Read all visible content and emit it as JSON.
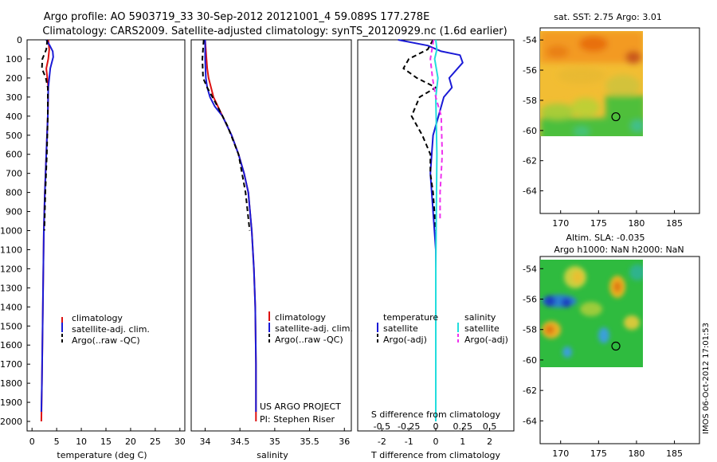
{
  "figure": {
    "title_line1": "Argo profile: AO 5903719_33 30-Sep-2012 20121001_4 59.089S 177.278E",
    "title_line2": "Climatology: CARS2009. Satellite-adjusted climatology: synTS_20120929.nc (1.6d earlier)",
    "side_label": "IMOS 06-Oct-2012 17:01:53"
  },
  "colors": {
    "climatology": "#dd1111",
    "satellite": "#1a1ad6",
    "argo": "#000000",
    "salinity_satellite": "#22dddd",
    "salinity_argo": "#ee33ee"
  },
  "chart_data": [
    {
      "id": "temperature",
      "type": "line",
      "title": "",
      "xlabel": "temperature (deg C)",
      "ylabel": "",
      "xlim": [
        -1,
        31
      ],
      "ylim": [
        2050,
        0
      ],
      "xticks": [
        0,
        5,
        10,
        15,
        20,
        25,
        30
      ],
      "xtick_labels": [
        "0",
        "5",
        "10",
        "15",
        "20",
        "25",
        "30"
      ],
      "yticks": [
        0,
        100,
        200,
        300,
        400,
        500,
        600,
        700,
        800,
        900,
        1000,
        1100,
        1200,
        1300,
        1400,
        1500,
        1600,
        1700,
        1800,
        1900,
        2000
      ],
      "ytick_labels": [
        "0",
        "100",
        "200",
        "300",
        "400",
        "500",
        "600",
        "700",
        "800",
        "900",
        "1000",
        "1100",
        "1200",
        "1300",
        "1400",
        "1500",
        "1600",
        "1700",
        "1800",
        "1900",
        "2000"
      ],
      "legend": [
        "climatology",
        "satellite-adj. clim.",
        "Argo(..raw -QC)"
      ],
      "annotations": [],
      "series": [
        {
          "name": "climatology",
          "style": "solid",
          "x": [
            3.3,
            3.5,
            3.3,
            2.9,
            3.1,
            3.3,
            3.2,
            2.9,
            2.6,
            2.4,
            2.2,
            2.0,
            1.9
          ],
          "y": [
            0,
            50,
            100,
            150,
            200,
            250,
            400,
            600,
            800,
            1000,
            1400,
            1800,
            2000
          ]
        },
        {
          "name": "satellite-adj. clim.",
          "style": "solid",
          "x": [
            2.9,
            3.6,
            4.2,
            4.3,
            3.7,
            3.3,
            3.2,
            2.9,
            2.6,
            2.4,
            2.2,
            2.0,
            1.9
          ],
          "y": [
            0,
            30,
            60,
            90,
            150,
            250,
            400,
            600,
            800,
            1000,
            1400,
            1800,
            1950
          ]
        },
        {
          "name": "Argo(..raw -QC)",
          "style": "dash",
          "x": [
            3.1,
            2.9,
            2.1,
            2.0,
            2.8,
            3.2,
            3.2,
            3.0,
            2.7,
            2.5
          ],
          "y": [
            0,
            50,
            100,
            150,
            200,
            250,
            400,
            600,
            800,
            1000
          ]
        }
      ]
    },
    {
      "id": "salinity",
      "type": "line",
      "title": "",
      "xlabel": "salinity",
      "ylabel": "",
      "xlim": [
        33.8,
        36.1
      ],
      "ylim": [
        2050,
        0
      ],
      "xticks": [
        34,
        34.5,
        35,
        35.5,
        36
      ],
      "xtick_labels": [
        "34",
        "34.5",
        "35",
        "35.5",
        "36"
      ],
      "yticks": [],
      "ytick_labels": [],
      "legend": [
        "climatology",
        "satellite-adj. clim.",
        "Argo(..raw -QC)"
      ],
      "annotations": [
        "US ARGO PROJECT",
        "PI: Stephen Riser"
      ],
      "series": [
        {
          "name": "climatology",
          "style": "solid",
          "x": [
            34.0,
            34.02,
            34.03,
            34.05,
            34.12,
            34.25,
            34.38,
            34.48,
            34.56,
            34.62,
            34.67,
            34.7,
            34.72,
            34.73,
            34.73
          ],
          "y": [
            0,
            100,
            150,
            200,
            300,
            400,
            500,
            600,
            700,
            800,
            1000,
            1200,
            1400,
            1700,
            2000
          ]
        },
        {
          "name": "satellite-adj. clim.",
          "style": "solid",
          "x": [
            34.0,
            34.0,
            34.01,
            34.03,
            34.07,
            34.14,
            34.25,
            34.38,
            34.48,
            34.56,
            34.62,
            34.67,
            34.7,
            34.72,
            34.73,
            34.73
          ],
          "y": [
            0,
            100,
            200,
            250,
            300,
            350,
            400,
            500,
            600,
            700,
            800,
            1000,
            1200,
            1400,
            1700,
            1950
          ]
        },
        {
          "name": "Argo(..raw -QC)",
          "style": "dash",
          "x": [
            33.98,
            33.96,
            33.97,
            34.03,
            34.18,
            34.32,
            34.48,
            34.58,
            34.64
          ],
          "y": [
            0,
            100,
            200,
            250,
            350,
            450,
            600,
            800,
            1000
          ]
        }
      ]
    },
    {
      "id": "difference",
      "type": "line",
      "title": "",
      "xlabel": "T difference from climatology",
      "xlabel_top": "S difference from climatology",
      "ylabel": "",
      "xlim": [
        -2.9,
        2.9
      ],
      "ylim": [
        2050,
        0
      ],
      "xticks": [
        -2,
        -1,
        0,
        1,
        2
      ],
      "xtick_labels": [
        "-2",
        "-1",
        "0",
        "1",
        "2"
      ],
      "s_xticks": [
        -0.5,
        -0.25,
        0,
        0.25,
        0.5
      ],
      "s_xtick_labels": [
        "-0.5",
        "-0.25",
        "0",
        "0.25",
        "0.5"
      ],
      "s_scale": 4,
      "yticks": [],
      "ytick_labels": [],
      "legend_headers": [
        "temperature",
        "salinity"
      ],
      "legend": [
        "satellite",
        "Argo(-adj)",
        "satellite",
        "Argo(-adj)"
      ],
      "annotations": [],
      "series": [
        {
          "name": "temperature satellite",
          "variable": "T",
          "style": "solid",
          "x": [
            -1.4,
            -0.3,
            0.2,
            0.9,
            1.0,
            0.5,
            0.6,
            0.3,
            0.1,
            -0.1,
            -0.2,
            -0.1,
            0.0,
            0.0,
            0.0,
            0.0
          ],
          "y": [
            0,
            30,
            60,
            80,
            120,
            200,
            250,
            300,
            400,
            500,
            700,
            900,
            1100,
            1400,
            1700,
            1950
          ]
        },
        {
          "name": "temperature Argo(-adj)",
          "variable": "T",
          "style": "dash",
          "x": [
            -0.1,
            -0.3,
            -1.0,
            -1.2,
            -0.7,
            0.0,
            -0.6,
            -0.9,
            -0.5,
            -0.2,
            -0.2,
            -0.1,
            -0.05,
            0.0
          ],
          "y": [
            0,
            50,
            100,
            150,
            200,
            250,
            300,
            400,
            500,
            600,
            700,
            800,
            900,
            1000
          ]
        },
        {
          "name": "salinity satellite",
          "variable": "S",
          "style": "solid",
          "x": [
            0.0,
            0.01,
            -0.01,
            0.02,
            0.0,
            0.01,
            0.0,
            0.0
          ],
          "y": [
            0,
            50,
            100,
            200,
            300,
            600,
            1200,
            2000
          ]
        },
        {
          "name": "salinity Argo(-adj)",
          "variable": "S",
          "style": "dash",
          "x": [
            -0.02,
            -0.05,
            -0.03,
            0.0,
            0.05,
            0.06,
            0.05,
            0.04,
            0.04
          ],
          "y": [
            0,
            100,
            200,
            300,
            400,
            600,
            700,
            800,
            950
          ]
        }
      ]
    },
    {
      "id": "sst_map",
      "type": "heatmap",
      "title": "sat. SST: 2.75 Argo: 3.01",
      "subtitle": "",
      "xlabel": "",
      "ylabel": "",
      "xlim": [
        167.3,
        188.3
      ],
      "ylim": [
        -65.5,
        -53.2
      ],
      "data_xlim": [
        167.3,
        180.0
      ],
      "data_ylim": [
        -60.0,
        -53.2
      ],
      "xticks": [
        170,
        175,
        180,
        185
      ],
      "xtick_labels": [
        "170",
        "175",
        "180",
        "185"
      ],
      "yticks": [
        -54,
        -56,
        -58,
        -60,
        -62,
        -64
      ],
      "ytick_labels": [
        "-54",
        "-56",
        "-58",
        "-60",
        "-62",
        "-64"
      ],
      "marker": {
        "lon": 177.278,
        "lat": -59.089
      }
    },
    {
      "id": "sla_map",
      "type": "heatmap",
      "title": "Altim. SLA: -0.035",
      "subtitle": "Argo h1000: NaN h2000: NaN",
      "xlabel": "",
      "ylabel": "",
      "xlim": [
        167.3,
        188.3
      ],
      "ylim": [
        -65.5,
        -53.2
      ],
      "data_xlim": [
        167.3,
        180.0
      ],
      "data_ylim": [
        -60.0,
        -53.2
      ],
      "xticks": [
        170,
        175,
        180,
        185
      ],
      "xtick_labels": [
        "170",
        "175",
        "180",
        "185"
      ],
      "yticks": [
        -54,
        -56,
        -58,
        -60,
        -62,
        -64
      ],
      "ytick_labels": [
        "-54",
        "-56",
        "-58",
        "-60",
        "-62",
        "-64"
      ],
      "marker": {
        "lon": 177.278,
        "lat": -59.089
      }
    }
  ]
}
